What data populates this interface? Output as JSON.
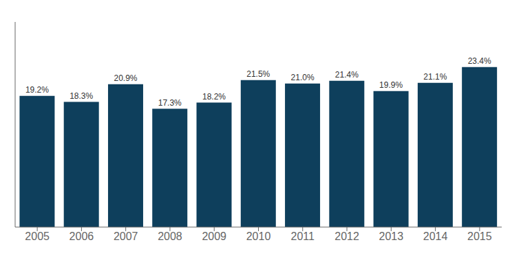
{
  "chart_data": {
    "type": "bar",
    "categories": [
      "2005",
      "2006",
      "2007",
      "2008",
      "2009",
      "2010",
      "2011",
      "2012",
      "2013",
      "2014",
      "2015"
    ],
    "values": [
      19.2,
      18.3,
      20.9,
      17.3,
      18.2,
      21.5,
      21.0,
      21.4,
      19.9,
      21.1,
      23.4
    ],
    "value_labels": [
      "19.2%",
      "18.3%",
      "20.9%",
      "17.3%",
      "18.2%",
      "21.5%",
      "21.0%",
      "21.4%",
      "19.9%",
      "21.1%",
      "23.4%"
    ],
    "color": "#0e3f5c",
    "ylim": [
      0,
      30
    ],
    "data_labels": true,
    "tick_labels": "x",
    "grid": false
  }
}
